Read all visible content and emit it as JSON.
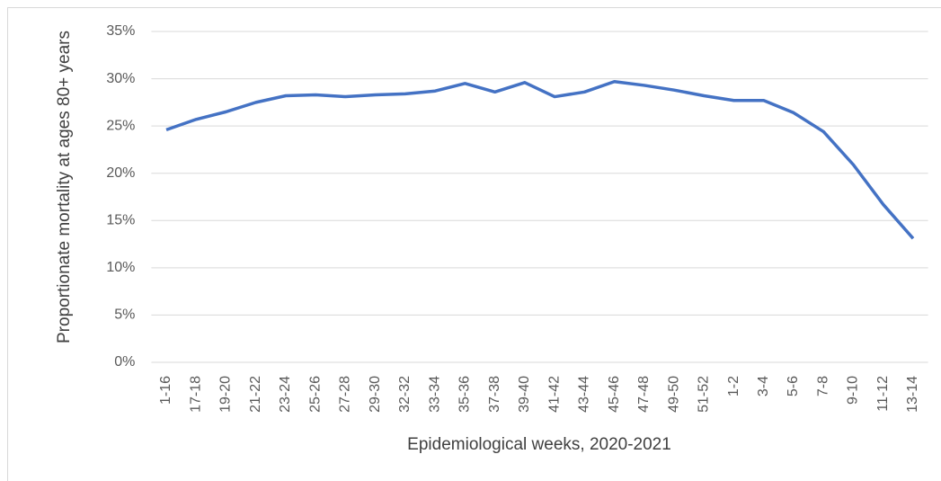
{
  "chart_data": {
    "type": "line",
    "ylabel": "Proportionate mortality at ages 80+ years",
    "xlabel": "Epidemiological weeks, 2020-2021",
    "categories": [
      "1-16",
      "17-18",
      "19-20",
      "21-22",
      "23-24",
      "25-26",
      "27-28",
      "29-30",
      "32-32",
      "33-34",
      "35-36",
      "37-38",
      "39-40",
      "41-42",
      "43-44",
      "45-46",
      "47-48",
      "49-50",
      "51-52",
      "1-2",
      "3-4",
      "5-6",
      "7-8",
      "9-10",
      "11-12",
      "13-14"
    ],
    "series": [
      {
        "color": "#4472c4",
        "values": [
          24.6,
          25.7,
          26.5,
          27.5,
          28.2,
          28.3,
          28.1,
          28.3,
          28.4,
          28.7,
          29.5,
          28.6,
          29.6,
          28.1,
          28.6,
          29.7,
          29.3,
          28.8,
          28.2,
          27.7,
          27.7,
          26.4,
          24.4,
          20.9,
          16.7,
          13.1
        ]
      }
    ],
    "ylim": [
      0,
      35
    ],
    "yticks": [
      {
        "value": 0,
        "label": "0%"
      },
      {
        "value": 5,
        "label": "5%"
      },
      {
        "value": 10,
        "label": "10%"
      },
      {
        "value": 15,
        "label": "15%"
      },
      {
        "value": 20,
        "label": "20%"
      },
      {
        "value": 25,
        "label": "25%"
      },
      {
        "value": 30,
        "label": "30%"
      },
      {
        "value": 35,
        "label": "35%"
      }
    ],
    "grid": true
  }
}
